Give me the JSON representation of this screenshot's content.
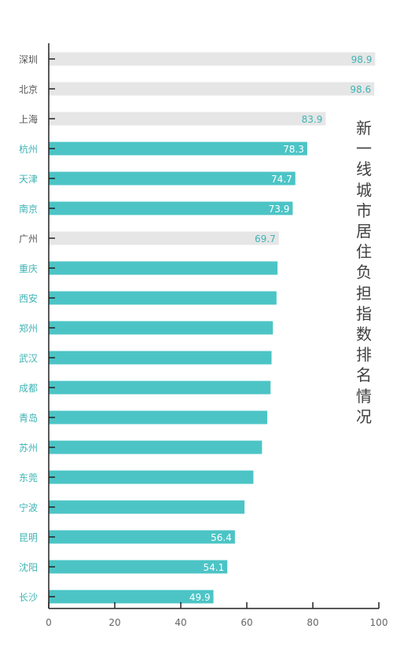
{
  "chart_data": {
    "type": "bar",
    "orientation": "horizontal",
    "title": "新一线城市居住负担指数排名情况",
    "categories": [
      "深圳",
      "北京",
      "上海",
      "杭州",
      "天津",
      "南京",
      "广州",
      "重庆",
      "西安",
      "郑州",
      "武汉",
      "成都",
      "青岛",
      "苏州",
      "东莞",
      "宁波",
      "昆明",
      "沈阳",
      "长沙"
    ],
    "values": [
      98.9,
      98.6,
      83.9,
      78.3,
      74.7,
      73.9,
      69.7,
      69.3,
      69.0,
      67.9,
      67.5,
      67.2,
      66.2,
      64.6,
      62.0,
      59.3,
      56.4,
      54.1,
      49.9
    ],
    "labels": [
      "98.9",
      "98.6",
      "83.9",
      "78.3",
      "74.7",
      "73.9",
      "69.7",
      "",
      "",
      "",
      "",
      "",
      "",
      "",
      "",
      "",
      "56.4",
      "54.1",
      "49.9"
    ],
    "group": [
      "first-tier",
      "first-tier",
      "first-tier",
      "new-first-tier",
      "new-first-tier",
      "new-first-tier",
      "first-tier",
      "new-first-tier",
      "new-first-tier",
      "new-first-tier",
      "new-first-tier",
      "new-first-tier",
      "new-first-tier",
      "new-first-tier",
      "new-first-tier",
      "new-first-tier",
      "new-first-tier",
      "new-first-tier",
      "new-first-tier"
    ],
    "x_ticks": [
      "0",
      "20",
      "40",
      "60",
      "80",
      "100"
    ],
    "xlim": [
      0,
      100
    ],
    "grid": false,
    "colors": {
      "first-tier": "#e6e6e6",
      "new-first-tier": "#4cc4c6",
      "label_on_teal": "#ffffff",
      "label_on_gray": "#3fb3b5",
      "category_teal": "#3fb3b5",
      "category_gray": "#555555",
      "axis": "#222222"
    }
  }
}
